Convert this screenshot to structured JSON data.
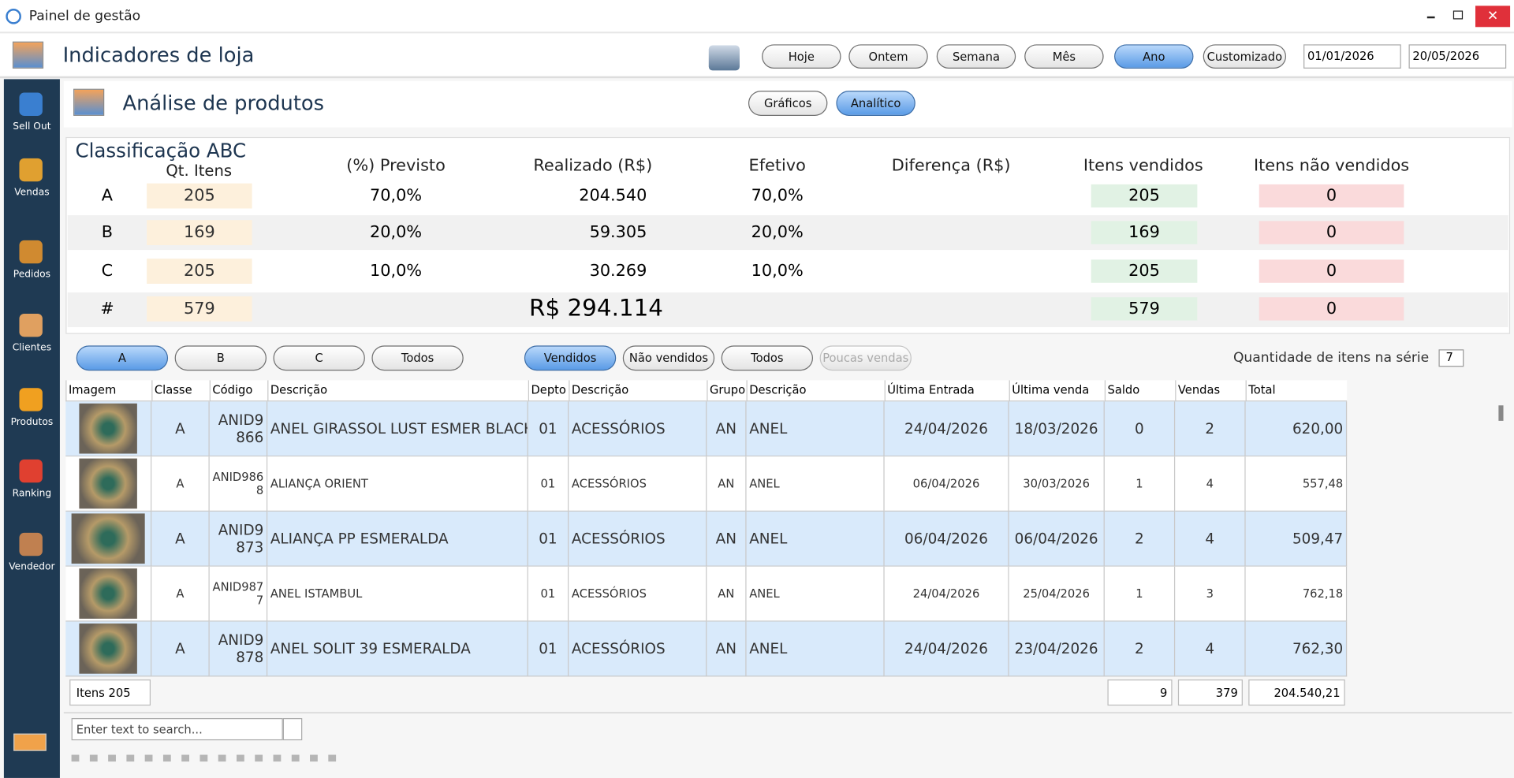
{
  "window": {
    "title": "Painel de gestão"
  },
  "header": {
    "title": "Indicadores de loja",
    "periods": [
      "Hoje",
      "Ontem",
      "Semana",
      "Mês",
      "Ano",
      "Customizado"
    ],
    "active_period": "Ano",
    "date_from": "01/01/2026",
    "date_to": "20/05/2026"
  },
  "sidebar": [
    "Sell Out",
    "Vendas",
    "Pedidos",
    "Clientes",
    "Produtos",
    "Ranking",
    "Vendedor"
  ],
  "section": {
    "title": "Análise de produtos",
    "views": [
      "Gráficos",
      "Analítico"
    ],
    "active_view": "Analítico"
  },
  "abc": {
    "title": "Classificação ABC",
    "columns": [
      "Qt. Itens",
      "(%) Previsto",
      "Realizado (R$)",
      "Efetivo",
      "Diferença (R$)",
      "Itens vendidos",
      "Itens não vendidos"
    ],
    "rows": [
      {
        "class": "A",
        "qty": "205",
        "planned": "70,0%",
        "realized": "204.540",
        "effective": "70,0%",
        "sold": "205",
        "unsold": "0"
      },
      {
        "class": "B",
        "qty": "169",
        "planned": "20,0%",
        "realized": "59.305",
        "effective": "20,0%",
        "sold": "169",
        "unsold": "0"
      },
      {
        "class": "C",
        "qty": "205",
        "planned": "10,0%",
        "realized": "30.269",
        "effective": "10,0%",
        "sold": "205",
        "unsold": "0"
      }
    ],
    "total": {
      "class": "#",
      "qty": "579",
      "realized": "R$ 294.114",
      "sold": "579",
      "unsold": "0"
    }
  },
  "filters": {
    "classes": [
      "A",
      "B",
      "C",
      "Todos"
    ],
    "active_class": "A",
    "status": [
      "Vendidos",
      "Não vendidos",
      "Todos",
      "Poucas vendas"
    ],
    "active_status": "Vendidos",
    "disabled_status": "Poucas vendas",
    "series_label": "Quantidade de itens na série",
    "series_value": "7"
  },
  "grid": {
    "columns": [
      "Imagem",
      "Classe",
      "Código",
      "Descrição",
      "Depto",
      "Descrição",
      "Grupo",
      "Descrição",
      "Última Entrada",
      "Última venda",
      "Saldo",
      "Vendas",
      "Total"
    ],
    "rows": [
      [
        "A",
        "ANID9866",
        "ANEL GIRASSOL LUST ESMER BLACK",
        "01",
        "ACESSÓRIOS",
        "AN",
        "ANEL",
        "24/04/2026",
        "18/03/2026",
        "0",
        "2",
        "620,00"
      ],
      [
        "A",
        "ANID9868",
        "ALIANÇA ORIENT",
        "01",
        "ACESSÓRIOS",
        "AN",
        "ANEL",
        "06/04/2026",
        "30/03/2026",
        "1",
        "4",
        "557,48"
      ],
      [
        "A",
        "ANID9873",
        "ALIANÇA PP ESMERALDA",
        "01",
        "ACESSÓRIOS",
        "AN",
        "ANEL",
        "06/04/2026",
        "06/04/2026",
        "2",
        "4",
        "509,47"
      ],
      [
        "A",
        "ANID9877",
        "ANEL ISTAMBUL",
        "01",
        "ACESSÓRIOS",
        "AN",
        "ANEL",
        "24/04/2026",
        "25/04/2026",
        "1",
        "3",
        "762,18"
      ],
      [
        "A",
        "ANID9878",
        "ANEL SOLIT 39 ESMERALDA",
        "01",
        "ACESSÓRIOS",
        "AN",
        "ANEL",
        "24/04/2026",
        "23/04/2026",
        "2",
        "4",
        "762,30"
      ]
    ],
    "footer": {
      "items": "Itens 205",
      "balance": "9",
      "sales": "379",
      "total": "204.540,21"
    }
  },
  "search": {
    "placeholder": "Enter text to search..."
  }
}
